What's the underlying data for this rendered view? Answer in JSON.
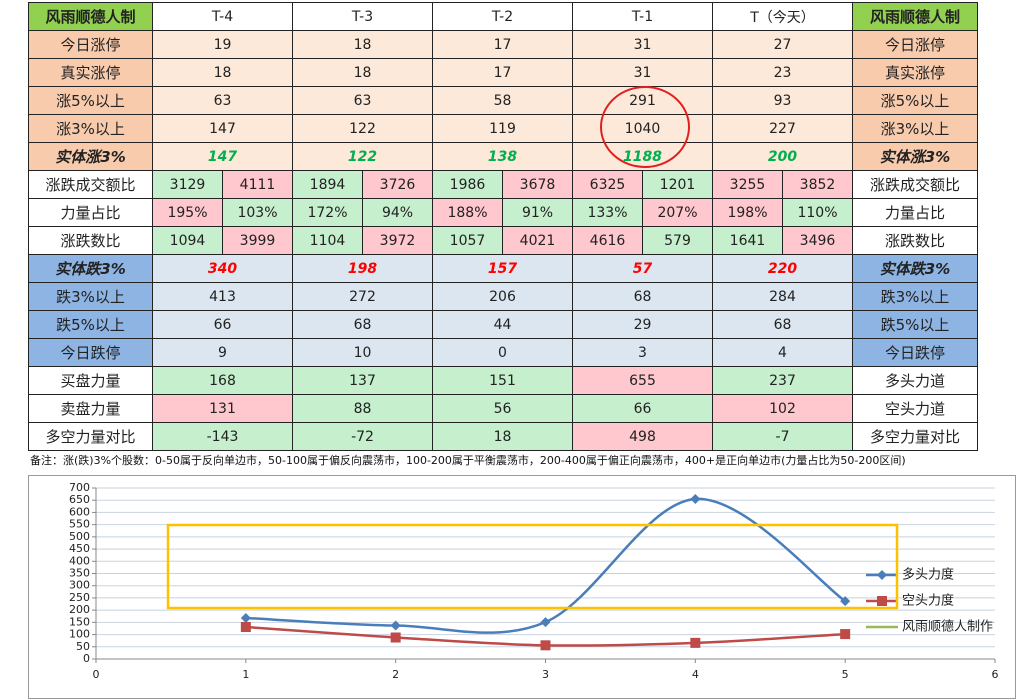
{
  "table": {
    "header": [
      "风雨顺德人制",
      "T-4",
      "T-3",
      "T-2",
      "T-1",
      "T（今天）",
      "风雨顺德人制"
    ],
    "rows": [
      {
        "label": "今日涨停",
        "label_right": "今日涨停",
        "values": [
          19,
          18,
          17,
          31,
          27
        ],
        "label_bg": "#f8cbad",
        "bg": "#fde9d9"
      },
      {
        "label": "真实涨停",
        "label_right": "真实涨停",
        "values": [
          18,
          18,
          17,
          31,
          23
        ],
        "label_bg": "#f8cbad",
        "bg": "#fde9d9"
      },
      {
        "label": "涨5%以上",
        "label_right": "涨5%以上",
        "values": [
          63,
          63,
          58,
          291,
          93
        ],
        "label_bg": "#f8cbad",
        "bg": "#fde9d9"
      },
      {
        "label": "涨3%以上",
        "label_right": "涨3%以上",
        "values": [
          147,
          122,
          119,
          1040,
          227
        ],
        "label_bg": "#f8cbad",
        "bg": "#fde9d9"
      },
      {
        "label": "实体涨3%",
        "label_right": "实体涨3%",
        "values": [
          147,
          122,
          138,
          1188,
          200
        ],
        "label_bg": "#f8cbad",
        "bg": "#fde9d9",
        "emphasis": "#00b050"
      },
      {
        "label": "涨跌成交额比",
        "label_right": "涨跌成交额比",
        "values": [
          [
            3129,
            4111
          ],
          [
            1894,
            3726
          ],
          [
            1986,
            3678
          ],
          [
            6325,
            1201
          ],
          [
            3255,
            3852
          ]
        ],
        "label_bg": "#ffffff",
        "colors": [
          [
            "#c6efce",
            "#ffc7ce"
          ],
          [
            "#c6efce",
            "#ffc7ce"
          ],
          [
            "#c6efce",
            "#ffc7ce"
          ],
          [
            "#ffc7ce",
            "#c6efce"
          ],
          [
            "#ffc7ce",
            "#ffc7ce"
          ]
        ]
      },
      {
        "label": "力量占比",
        "label_right": "力量占比",
        "values": [
          [
            "195%",
            "103%"
          ],
          [
            "172%",
            "94%"
          ],
          [
            "188%",
            "91%"
          ],
          [
            "133%",
            "207%"
          ],
          [
            "198%",
            "110%"
          ]
        ],
        "label_bg": "#ffffff",
        "colors": [
          [
            "#ffc7ce",
            "#c6efce"
          ],
          [
            "#c6efce",
            "#c6efce"
          ],
          [
            "#ffc7ce",
            "#c6efce"
          ],
          [
            "#c6efce",
            "#ffc7ce"
          ],
          [
            "#ffc7ce",
            "#c6efce"
          ]
        ]
      },
      {
        "label": "涨跌数比",
        "label_right": "涨跌数比",
        "values": [
          [
            1094,
            3999
          ],
          [
            1104,
            3972
          ],
          [
            1057,
            4021
          ],
          [
            4616,
            579
          ],
          [
            1641,
            3496
          ]
        ],
        "label_bg": "#ffffff",
        "colors": [
          [
            "#c6efce",
            "#ffc7ce"
          ],
          [
            "#c6efce",
            "#ffc7ce"
          ],
          [
            "#c6efce",
            "#ffc7ce"
          ],
          [
            "#ffc7ce",
            "#c6efce"
          ],
          [
            "#c6efce",
            "#ffc7ce"
          ]
        ]
      },
      {
        "label": "实体跌3%",
        "label_right": "实体跌3%",
        "values": [
          340,
          198,
          157,
          57,
          220
        ],
        "label_bg": "#8db4e2",
        "bg": "#dce6f1",
        "emphasis": "#ff0000"
      },
      {
        "label": "跌3%以上",
        "label_right": "跌3%以上",
        "values": [
          413,
          272,
          206,
          68,
          284
        ],
        "label_bg": "#8db4e2",
        "bg": "#dce6f1"
      },
      {
        "label": "跌5%以上",
        "label_right": "跌5%以上",
        "values": [
          66,
          68,
          44,
          29,
          68
        ],
        "label_bg": "#8db4e2",
        "bg": "#dce6f1"
      },
      {
        "label": "今日跌停",
        "label_right": "今日跌停",
        "values": [
          9,
          10,
          0,
          3,
          4
        ],
        "label_bg": "#8db4e2",
        "bg": "#dce6f1"
      },
      {
        "label": "买盘力量",
        "label_right": "多头力道",
        "values": [
          168,
          137,
          151,
          655,
          237
        ],
        "label_bg": "#ffffff",
        "colors": [
          "#c6efce",
          "#c6efce",
          "#c6efce",
          "#ffc7ce",
          "#c6efce"
        ]
      },
      {
        "label": "卖盘力量",
        "label_right": "空头力道",
        "values": [
          131,
          88,
          56,
          66,
          102
        ],
        "label_bg": "#ffffff",
        "colors": [
          "#ffc7ce",
          "#c6efce",
          "#c6efce",
          "#c6efce",
          "#ffc7ce"
        ]
      },
      {
        "label": "多空力量对比",
        "label_right": "多空力量对比",
        "values": [
          -143,
          -72,
          18,
          498,
          -7
        ],
        "label_bg": "#ffffff",
        "colors": [
          "#c6efce",
          "#c6efce",
          "#c6efce",
          "#ffc7ce",
          "#c6efce"
        ]
      }
    ],
    "note": "备注：涨(跌)3%个股数：0-50属于反向单边市，50-100属于偏反向震荡市，100-200属于平衡震荡市，200-400属于偏正向震荡市，400+是正向单边市(力量占比为50-200区间)"
  },
  "chart_data": {
    "type": "line",
    "x": [
      1,
      2,
      3,
      4,
      5
    ],
    "series": [
      {
        "name": "多头力度",
        "color": "#4a7ebb",
        "values": [
          168,
          137,
          151,
          655,
          237
        ]
      },
      {
        "name": "空头力度",
        "color": "#be4b48",
        "values": [
          131,
          88,
          56,
          66,
          102
        ]
      },
      {
        "name": "风雨顺德人制作",
        "color": "#98b954"
      }
    ],
    "xlim": [
      0,
      6
    ],
    "xticks": [
      0,
      1,
      2,
      3,
      4,
      5,
      6
    ],
    "ylim": [
      0,
      700
    ],
    "yticks": [
      0,
      50,
      100,
      150,
      200,
      250,
      300,
      350,
      400,
      450,
      500,
      550,
      600,
      650,
      700
    ],
    "grid": true,
    "smooth": true,
    "legend": "right"
  }
}
